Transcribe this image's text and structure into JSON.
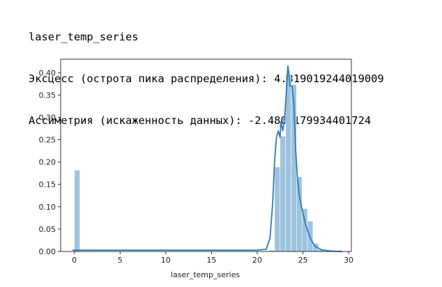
{
  "output": {
    "lines": [
      "laser_temp_series",
      "Эксцесс (острота пика распределения): 4.319019244019009",
      "Ассиметрия (искаженность данных): -2.4806179934401724"
    ]
  },
  "chart_data": {
    "type": "histogram+kde",
    "title": "",
    "xlabel": "laser_temp_series",
    "ylabel": "",
    "xlim": [
      -1.5,
      30.3
    ],
    "ylim": [
      0,
      0.43
    ],
    "x_ticks": [
      0,
      5,
      10,
      15,
      20,
      25,
      30
    ],
    "y_ticks": [
      0.0,
      0.05,
      0.1,
      0.15,
      0.2,
      0.25,
      0.3,
      0.35,
      0.4
    ],
    "y_tick_labels": [
      "0.00",
      "0.05",
      "0.10",
      "0.15",
      "0.20",
      "0.25",
      "0.30",
      "0.35",
      "0.40"
    ],
    "histogram": {
      "bin_width": 0.6,
      "bins": [
        {
          "x0": 0.0,
          "density": 0.182
        },
        {
          "x0": 21.3,
          "density": 0.003
        },
        {
          "x0": 21.9,
          "density": 0.189
        },
        {
          "x0": 22.5,
          "density": 0.258
        },
        {
          "x0": 23.1,
          "density": 0.396
        },
        {
          "x0": 23.7,
          "density": 0.373
        },
        {
          "x0": 24.3,
          "density": 0.167
        },
        {
          "x0": 24.9,
          "density": 0.096
        },
        {
          "x0": 25.5,
          "density": 0.068
        },
        {
          "x0": 26.1,
          "density": 0.018
        },
        {
          "x0": 26.7,
          "density": 0.004
        }
      ]
    },
    "kde": {
      "x": [
        -0.2,
        2,
        5,
        10,
        15,
        20,
        21.0,
        21.4,
        21.7,
        21.9,
        22.1,
        22.3,
        22.5,
        22.6,
        22.8,
        23.0,
        23.2,
        23.35,
        23.45,
        23.6,
        23.8,
        24.0,
        24.2,
        24.4,
        24.6,
        24.9,
        25.3,
        25.8,
        26.3,
        27.0,
        28.0,
        29.3
      ],
      "y": [
        0.003,
        0.003,
        0.003,
        0.003,
        0.003,
        0.003,
        0.005,
        0.03,
        0.11,
        0.2,
        0.255,
        0.27,
        0.255,
        0.29,
        0.27,
        0.3,
        0.36,
        0.415,
        0.4,
        0.37,
        0.37,
        0.335,
        0.23,
        0.165,
        0.125,
        0.095,
        0.06,
        0.03,
        0.012,
        0.004,
        0.001,
        0.0
      ]
    },
    "colors": {
      "bar": "#9dc3df",
      "bar_edge": "#ffffff",
      "line": "#2f7ab9",
      "axis": "#000000",
      "text": "#222222"
    }
  }
}
